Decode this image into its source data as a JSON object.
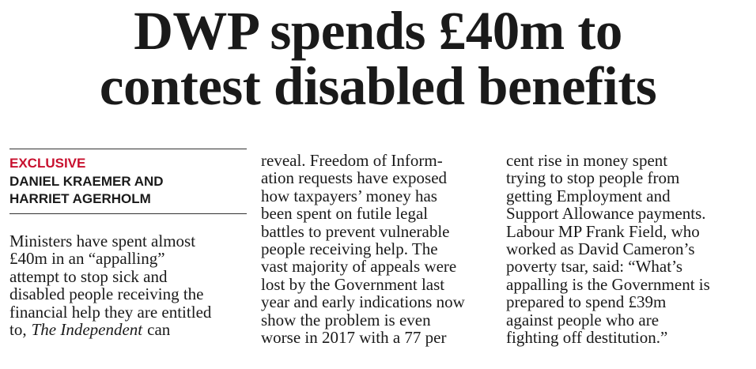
{
  "headline": {
    "lines": [
      "DWP spends £40m to",
      "contest disabled benefits"
    ]
  },
  "column_1": {
    "kicker": "EXCLUSIVE",
    "byline_lines": [
      "DANIEL KRAEMER AND",
      "HARRIET AGERHOLM"
    ],
    "body_lines": [
      "Ministers have spent almost",
      "£40m in an “appalling”",
      "attempt to stop sick and",
      "disabled people receiving the",
      "financial help they are entitled"
    ],
    "last_line": {
      "before": "to,",
      "publication": "The Independent",
      "after": "can"
    }
  },
  "column_2": {
    "body_lines": [
      "reveal. Freedom of Inform-",
      "ation requests have exposed",
      "how taxpayers’ money has",
      "been spent on futile legal",
      "battles to prevent vulnerable",
      "people receiving help. The",
      "vast majority of appeals were",
      "lost by the Government last",
      "year and early indications now",
      "show the problem is even",
      "worse in 2017 with a 77 per"
    ]
  },
  "column_3": {
    "body_lines": [
      "cent rise in money spent",
      "trying to stop people from",
      "getting Employment and",
      "Support Allowance payments.",
      "Labour MP Frank Field, who",
      "worked as David Cameron’s",
      "poverty tsar, said: “What’s",
      "appalling is the Government is",
      "prepared to spend £39m",
      "against people who are",
      "fighting off destitution.”"
    ]
  }
}
